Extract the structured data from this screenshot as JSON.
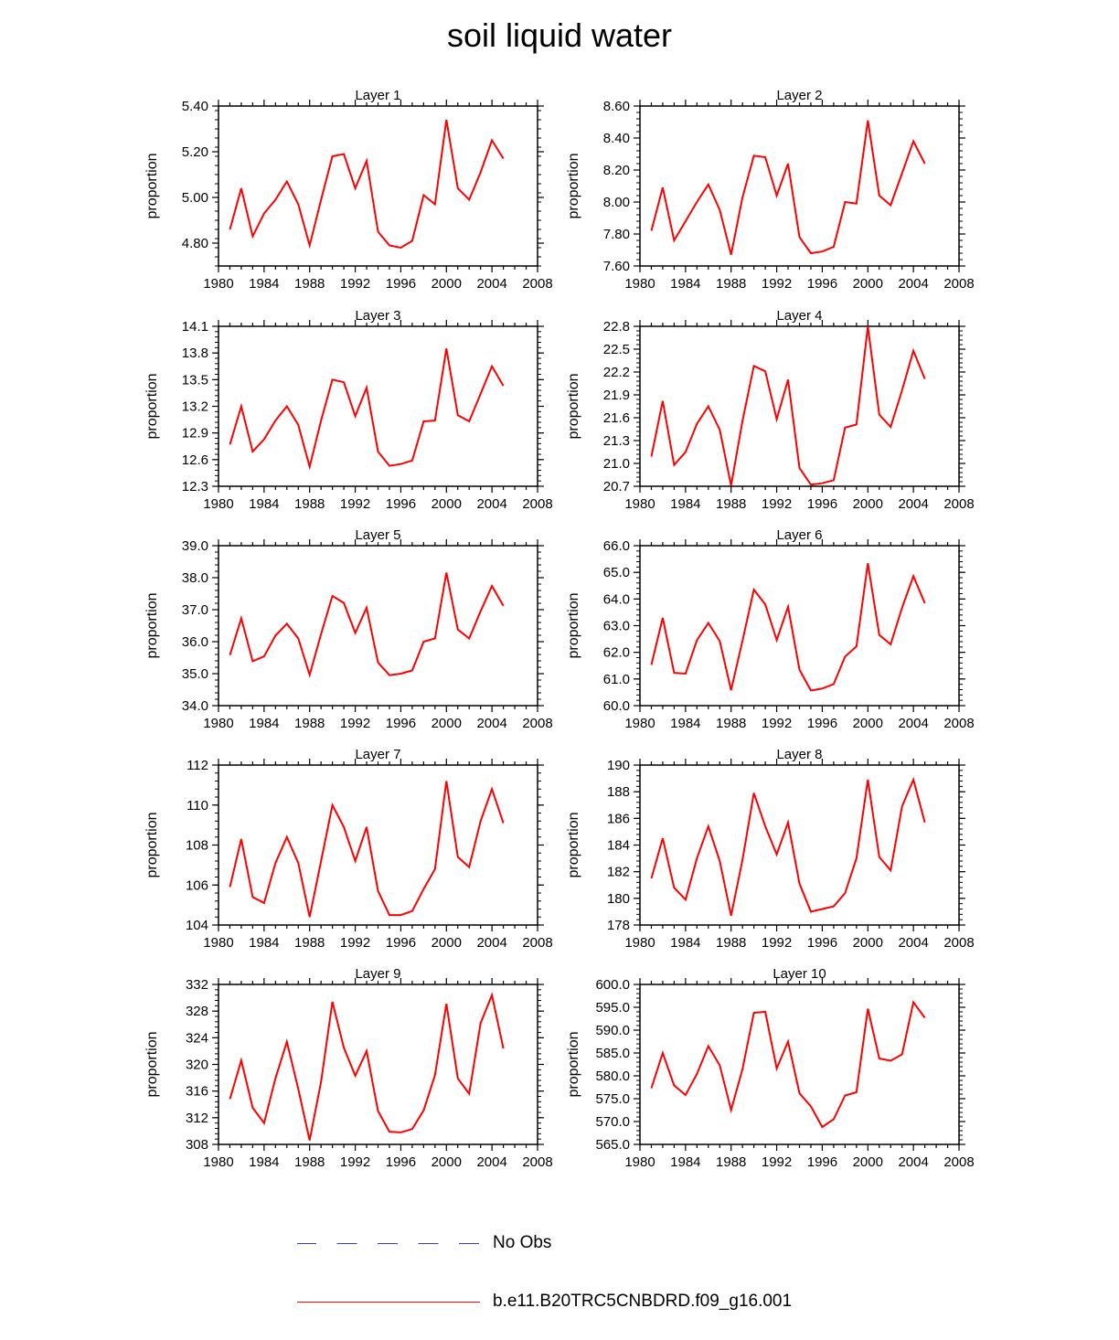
{
  "title": "soil liquid water",
  "colors": {
    "model": "#ff0000",
    "obs": "#3a3ad0",
    "axis": "#000000"
  },
  "legend": {
    "obs_label": "No Obs",
    "model_label": "b.e11.B20TRC5CNBDRD.f09_g16.001"
  },
  "chart_data": [
    {
      "type": "line",
      "title": "Layer 1",
      "ylabel": "proportion",
      "xlim": [
        1980,
        2008
      ],
      "ylim": [
        4.7,
        5.4
      ],
      "xticks": [
        "1980",
        "1984",
        "1988",
        "1992",
        "1996",
        "2000",
        "2004",
        "2008"
      ],
      "yticks": [
        "4.80",
        "5.00",
        "5.20",
        "5.40"
      ],
      "ytick_values": [
        4.8,
        5.0,
        5.2,
        5.4
      ],
      "x": [
        1981,
        1982,
        1983,
        1984,
        1985,
        1986,
        1987,
        1988,
        1989,
        1990,
        1991,
        1992,
        1993,
        1994,
        1995,
        1996,
        1997,
        1998,
        1999,
        2000,
        2001,
        2002,
        2003,
        2004,
        2005
      ],
      "series": [
        {
          "name": "b.e11.B20TRC5CNBDRD.f09_g16.001",
          "values": [
            4.86,
            5.04,
            4.83,
            4.93,
            4.99,
            5.07,
            4.97,
            4.79,
            4.99,
            5.18,
            5.19,
            5.04,
            5.16,
            4.85,
            4.79,
            4.78,
            4.81,
            5.01,
            4.97,
            5.34,
            5.04,
            4.99,
            5.11,
            5.25,
            5.17
          ]
        }
      ]
    },
    {
      "type": "line",
      "title": "Layer 2",
      "ylabel": "proportion",
      "xlim": [
        1980,
        2008
      ],
      "ylim": [
        7.6,
        8.6
      ],
      "xticks": [
        "1980",
        "1984",
        "1988",
        "1992",
        "1996",
        "2000",
        "2004",
        "2008"
      ],
      "yticks": [
        "7.60",
        "7.80",
        "8.00",
        "8.20",
        "8.40",
        "8.60"
      ],
      "ytick_values": [
        7.6,
        7.8,
        8.0,
        8.2,
        8.4,
        8.6
      ],
      "x": [
        1981,
        1982,
        1983,
        1984,
        1985,
        1986,
        1987,
        1988,
        1989,
        1990,
        1991,
        1992,
        1993,
        1994,
        1995,
        1996,
        1997,
        1998,
        1999,
        2000,
        2001,
        2002,
        2003,
        2004,
        2005
      ],
      "series": [
        {
          "name": "b.e11.B20TRC5CNBDRD.f09_g16.001",
          "values": [
            7.82,
            8.09,
            7.76,
            7.88,
            8.0,
            8.11,
            7.95,
            7.67,
            8.03,
            8.29,
            8.28,
            8.04,
            8.24,
            7.78,
            7.68,
            7.69,
            7.72,
            8.0,
            7.99,
            8.51,
            8.04,
            7.98,
            8.18,
            8.38,
            8.24
          ]
        }
      ]
    },
    {
      "type": "line",
      "title": "Layer 3",
      "ylabel": "proportion",
      "xlim": [
        1980,
        2008
      ],
      "ylim": [
        12.3,
        14.1
      ],
      "xticks": [
        "1980",
        "1984",
        "1988",
        "1992",
        "1996",
        "2000",
        "2004",
        "2008"
      ],
      "yticks": [
        "12.3",
        "12.6",
        "12.9",
        "13.2",
        "13.5",
        "13.8",
        "14.1"
      ],
      "ytick_values": [
        12.3,
        12.6,
        12.9,
        13.2,
        13.5,
        13.8,
        14.1
      ],
      "x": [
        1981,
        1982,
        1983,
        1984,
        1985,
        1986,
        1987,
        1988,
        1989,
        1990,
        1991,
        1992,
        1993,
        1994,
        1995,
        1996,
        1997,
        1998,
        1999,
        2000,
        2001,
        2002,
        2003,
        2004,
        2005
      ],
      "series": [
        {
          "name": "b.e11.B20TRC5CNBDRD.f09_g16.001",
          "values": [
            12.77,
            13.2,
            12.69,
            12.83,
            13.04,
            13.2,
            12.99,
            12.52,
            13.04,
            13.5,
            13.47,
            13.09,
            13.41,
            12.69,
            12.53,
            12.55,
            12.59,
            13.03,
            13.04,
            13.85,
            13.1,
            13.03,
            13.34,
            13.65,
            13.43
          ]
        }
      ]
    },
    {
      "type": "line",
      "title": "Layer 4",
      "ylabel": "proportion",
      "xlim": [
        1980,
        2008
      ],
      "ylim": [
        20.7,
        22.8
      ],
      "xticks": [
        "1980",
        "1984",
        "1988",
        "1992",
        "1996",
        "2000",
        "2004",
        "2008"
      ],
      "yticks": [
        "20.7",
        "21.0",
        "21.3",
        "21.6",
        "21.9",
        "22.2",
        "22.5",
        "22.8"
      ],
      "ytick_values": [
        20.7,
        21.0,
        21.3,
        21.6,
        21.9,
        22.2,
        22.5,
        22.8
      ],
      "x": [
        1981,
        1982,
        1983,
        1984,
        1985,
        1986,
        1987,
        1988,
        1989,
        1990,
        1991,
        1992,
        1993,
        1994,
        1995,
        1996,
        1997,
        1998,
        1999,
        2000,
        2001,
        2002,
        2003,
        2004,
        2005
      ],
      "series": [
        {
          "name": "b.e11.B20TRC5CNBDRD.f09_g16.001",
          "values": [
            21.09,
            21.82,
            20.98,
            21.15,
            21.52,
            21.75,
            21.44,
            20.71,
            21.56,
            22.28,
            22.21,
            21.58,
            22.1,
            20.94,
            20.72,
            20.74,
            20.78,
            21.47,
            21.51,
            22.8,
            21.64,
            21.48,
            21.96,
            22.48,
            22.11
          ]
        }
      ]
    },
    {
      "type": "line",
      "title": "Layer 5",
      "ylabel": "proportion",
      "xlim": [
        1980,
        2008
      ],
      "ylim": [
        34.0,
        39.0
      ],
      "xticks": [
        "1980",
        "1984",
        "1988",
        "1992",
        "1996",
        "2000",
        "2004",
        "2008"
      ],
      "yticks": [
        "34.0",
        "35.0",
        "36.0",
        "37.0",
        "38.0",
        "39.0"
      ],
      "ytick_values": [
        34.0,
        35.0,
        36.0,
        37.0,
        38.0,
        39.0
      ],
      "x": [
        1981,
        1982,
        1983,
        1984,
        1985,
        1986,
        1987,
        1988,
        1989,
        1990,
        1991,
        1992,
        1993,
        1994,
        1995,
        1996,
        1997,
        1998,
        1999,
        2000,
        2001,
        2002,
        2003,
        2004,
        2005
      ],
      "series": [
        {
          "name": "b.e11.B20TRC5CNBDRD.f09_g16.001",
          "values": [
            35.58,
            36.73,
            35.39,
            35.54,
            36.19,
            36.56,
            36.1,
            34.96,
            36.24,
            37.43,
            37.21,
            36.27,
            37.06,
            35.35,
            34.95,
            35.0,
            35.1,
            36.0,
            36.1,
            38.16,
            36.38,
            36.1,
            36.95,
            37.74,
            37.12
          ]
        }
      ]
    },
    {
      "type": "line",
      "title": "Layer 6",
      "ylabel": "proportion",
      "xlim": [
        1980,
        2008
      ],
      "ylim": [
        60.0,
        66.0
      ],
      "xticks": [
        "1980",
        "1984",
        "1988",
        "1992",
        "1996",
        "2000",
        "2004",
        "2008"
      ],
      "yticks": [
        "60.0",
        "61.0",
        "62.0",
        "63.0",
        "64.0",
        "65.0",
        "66.0"
      ],
      "ytick_values": [
        60.0,
        61.0,
        62.0,
        63.0,
        64.0,
        65.0,
        66.0
      ],
      "x": [
        1981,
        1982,
        1983,
        1984,
        1985,
        1986,
        1987,
        1988,
        1989,
        1990,
        1991,
        1992,
        1993,
        1994,
        1995,
        1996,
        1997,
        1998,
        1999,
        2000,
        2001,
        2002,
        2003,
        2004,
        2005
      ],
      "series": [
        {
          "name": "b.e11.B20TRC5CNBDRD.f09_g16.001",
          "values": [
            61.53,
            63.29,
            61.23,
            61.2,
            62.45,
            63.1,
            62.42,
            60.58,
            62.44,
            64.35,
            63.8,
            62.46,
            63.71,
            61.35,
            60.57,
            60.64,
            60.81,
            61.84,
            62.22,
            65.34,
            62.65,
            62.3,
            63.67,
            64.86,
            63.84
          ]
        }
      ]
    },
    {
      "type": "line",
      "title": "Layer 7",
      "ylabel": "proportion",
      "xlim": [
        1980,
        2008
      ],
      "ylim": [
        104,
        112
      ],
      "xticks": [
        "1980",
        "1984",
        "1988",
        "1992",
        "1996",
        "2000",
        "2004",
        "2008"
      ],
      "yticks": [
        "104",
        "106",
        "108",
        "110",
        "112"
      ],
      "ytick_values": [
        104,
        106,
        108,
        110,
        112
      ],
      "x": [
        1981,
        1982,
        1983,
        1984,
        1985,
        1986,
        1987,
        1988,
        1989,
        1990,
        1991,
        1992,
        1993,
        1994,
        1995,
        1996,
        1997,
        1998,
        1999,
        2000,
        2001,
        2002,
        2003,
        2004,
        2005
      ],
      "series": [
        {
          "name": "b.e11.B20TRC5CNBDRD.f09_g16.001",
          "values": [
            105.9,
            108.3,
            105.4,
            105.1,
            107.1,
            108.4,
            107.1,
            104.4,
            107.2,
            110.0,
            108.9,
            107.2,
            108.9,
            105.7,
            104.5,
            104.5,
            104.7,
            105.8,
            106.8,
            111.2,
            107.4,
            106.9,
            109.2,
            110.8,
            109.1
          ]
        }
      ]
    },
    {
      "type": "line",
      "title": "Layer 8",
      "ylabel": "proportion",
      "xlim": [
        1980,
        2008
      ],
      "ylim": [
        178,
        190
      ],
      "xticks": [
        "1980",
        "1984",
        "1988",
        "1992",
        "1996",
        "2000",
        "2004",
        "2008"
      ],
      "yticks": [
        "178",
        "180",
        "182",
        "184",
        "186",
        "188",
        "190"
      ],
      "ytick_values": [
        178,
        180,
        182,
        184,
        186,
        188,
        190
      ],
      "x": [
        1981,
        1982,
        1983,
        1984,
        1985,
        1986,
        1987,
        1988,
        1989,
        1990,
        1991,
        1992,
        1993,
        1994,
        1995,
        1996,
        1997,
        1998,
        1999,
        2000,
        2001,
        2002,
        2003,
        2004,
        2005
      ],
      "series": [
        {
          "name": "b.e11.B20TRC5CNBDRD.f09_g16.001",
          "values": [
            181.5,
            184.5,
            180.8,
            179.9,
            183.0,
            185.4,
            182.8,
            178.7,
            182.9,
            187.9,
            185.4,
            183.3,
            185.7,
            181.1,
            179.0,
            179.2,
            179.4,
            180.4,
            183.0,
            188.9,
            183.1,
            182.1,
            186.9,
            188.9,
            185.7
          ]
        }
      ]
    },
    {
      "type": "line",
      "title": "Layer 9",
      "ylabel": "proportion",
      "xlim": [
        1980,
        2008
      ],
      "ylim": [
        308,
        332
      ],
      "xticks": [
        "1980",
        "1984",
        "1988",
        "1992",
        "1996",
        "2000",
        "2004",
        "2008"
      ],
      "yticks": [
        "308",
        "312",
        "316",
        "320",
        "324",
        "328",
        "332"
      ],
      "ytick_values": [
        308,
        312,
        316,
        320,
        324,
        328,
        332
      ],
      "x": [
        1981,
        1982,
        1983,
        1984,
        1985,
        1986,
        1987,
        1988,
        1989,
        1990,
        1991,
        1992,
        1993,
        1994,
        1995,
        1996,
        1997,
        1998,
        1999,
        2000,
        2001,
        2002,
        2003,
        2004,
        2005
      ],
      "series": [
        {
          "name": "b.e11.B20TRC5CNBDRD.f09_g16.001",
          "values": [
            314.8,
            320.6,
            313.5,
            311.2,
            317.9,
            323.4,
            316.3,
            308.6,
            317.4,
            329.4,
            322.5,
            318.3,
            322.0,
            313.0,
            309.9,
            309.8,
            310.3,
            313.1,
            318.4,
            329.1,
            317.9,
            315.6,
            326.2,
            330.4,
            322.4
          ]
        }
      ]
    },
    {
      "type": "line",
      "title": "Layer 10",
      "ylabel": "proportion",
      "xlim": [
        1980,
        2008
      ],
      "ylim": [
        565.0,
        600.0
      ],
      "xticks": [
        "1980",
        "1984",
        "1988",
        "1992",
        "1996",
        "2000",
        "2004",
        "2008"
      ],
      "yticks": [
        "565.0",
        "570.0",
        "575.0",
        "580.0",
        "585.0",
        "590.0",
        "595.0",
        "600.0"
      ],
      "ytick_values": [
        565.0,
        570.0,
        575.0,
        580.0,
        585.0,
        590.0,
        595.0,
        600.0
      ],
      "x": [
        1981,
        1982,
        1983,
        1984,
        1985,
        1986,
        1987,
        1988,
        1989,
        1990,
        1991,
        1992,
        1993,
        1994,
        1995,
        1996,
        1997,
        1998,
        1999,
        2000,
        2001,
        2002,
        2003,
        2004,
        2005
      ],
      "series": [
        {
          "name": "b.e11.B20TRC5CNBDRD.f09_g16.001",
          "values": [
            577.3,
            585.0,
            577.9,
            575.8,
            580.4,
            586.5,
            582.3,
            572.5,
            581.5,
            593.8,
            594.0,
            581.6,
            587.5,
            576.2,
            573.3,
            568.8,
            570.5,
            575.7,
            576.4,
            594.7,
            583.8,
            583.3,
            584.7,
            596.1,
            592.7
          ]
        }
      ]
    }
  ]
}
